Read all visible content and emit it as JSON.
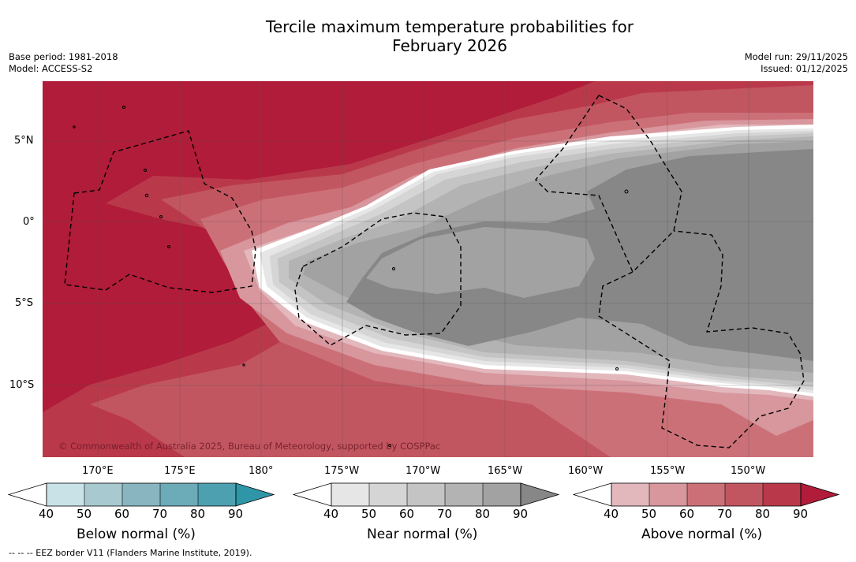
{
  "header": {
    "title_line1": "Tercile maximum temperature probabilities for",
    "title_line2": "February 2026",
    "base_period": "Base period: 1981-2018",
    "model": "Model: ACCESS-S2",
    "model_run": "Model run: 29/11/2025",
    "issued": "Issued: 01/12/2025"
  },
  "map": {
    "copyright": "© Commonwealth of Australia 2025, Bureau of Meteorology, supported by COSPPac",
    "lat_labels": [
      "5°N",
      "0°",
      "5°S",
      "10°S"
    ],
    "lon_labels": [
      "170°E",
      "175°E",
      "180°",
      "175°W",
      "170°W",
      "165°W",
      "160°W",
      "155°W",
      "150°W"
    ],
    "colors": {
      "above": [
        "#e2b8bd",
        "#d8969d",
        "#cc7078",
        "#c25660",
        "#b9394a",
        "#b01c39"
      ],
      "near": [
        "#e6e6e6",
        "#d5d5d5",
        "#c4c4c4",
        "#b3b3b3",
        "#a2a2a2",
        "#878787"
      ],
      "below": [
        "#c9e2e8",
        "#a7c9cf",
        "#88b5bf",
        "#6cabb8",
        "#4ca0b0",
        "#2f96a8"
      ]
    }
  },
  "colorbars": [
    {
      "title": "Below normal (%)",
      "ticks": [
        "40",
        "50",
        "60",
        "70",
        "80",
        "90"
      ]
    },
    {
      "title": "Near normal (%)",
      "ticks": [
        "40",
        "50",
        "60",
        "70",
        "80",
        "90"
      ]
    },
    {
      "title": "Above normal (%)",
      "ticks": [
        "40",
        "50",
        "60",
        "70",
        "80",
        "90"
      ]
    }
  ],
  "footer": {
    "eez_note": "--  --  -- EEZ border V11 (Flanders Marine Institute, 2019)."
  }
}
